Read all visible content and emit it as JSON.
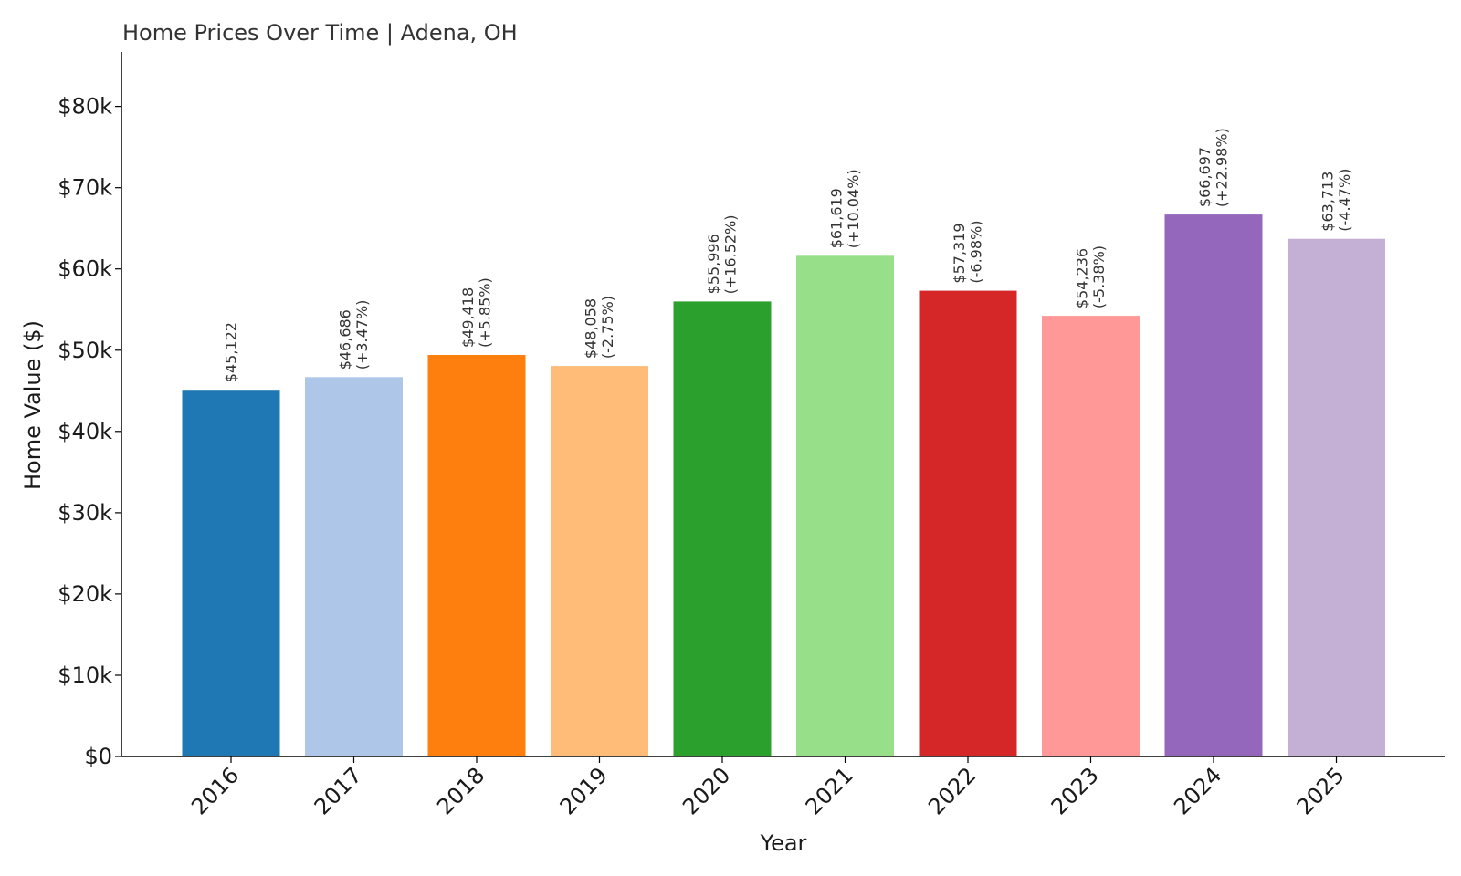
{
  "chart_data": {
    "type": "bar",
    "title": "Home Prices Over Time | Adena, OH",
    "xlabel": "Year",
    "ylabel": "Home Value ($)",
    "categories": [
      "2016",
      "2017",
      "2018",
      "2019",
      "2020",
      "2021",
      "2022",
      "2023",
      "2024",
      "2025"
    ],
    "values": [
      45122,
      46686,
      49418,
      48058,
      55996,
      61619,
      57319,
      54236,
      66697,
      63713
    ],
    "value_labels": [
      "$45,122",
      "$46,686",
      "$49,418",
      "$48,058",
      "$55,996",
      "$61,619",
      "$57,319",
      "$54,236",
      "$66,697",
      "$63,713"
    ],
    "change_labels": [
      "",
      "(+3.47%)",
      "(+5.85%)",
      "(-2.75%)",
      "(+16.52%)",
      "(+10.04%)",
      "(-6.98%)",
      "(-5.38%)",
      "(+22.98%)",
      "(-4.47%)"
    ],
    "colors": [
      "#1f77b4",
      "#aec7e8",
      "#ff7f0e",
      "#ffbb78",
      "#2ca02c",
      "#98df8a",
      "#d62728",
      "#ff9896",
      "#9467bd",
      "#c5b0d5"
    ],
    "yticks": [
      0,
      10000,
      20000,
      30000,
      40000,
      50000,
      60000,
      70000,
      80000
    ],
    "ytick_labels": [
      "$0",
      "$10k",
      "$20k",
      "$30k",
      "$40k",
      "$50k",
      "$60k",
      "$70k",
      "$80k"
    ],
    "ylim": [
      0,
      86697
    ],
    "grid": false,
    "legend": "none"
  }
}
